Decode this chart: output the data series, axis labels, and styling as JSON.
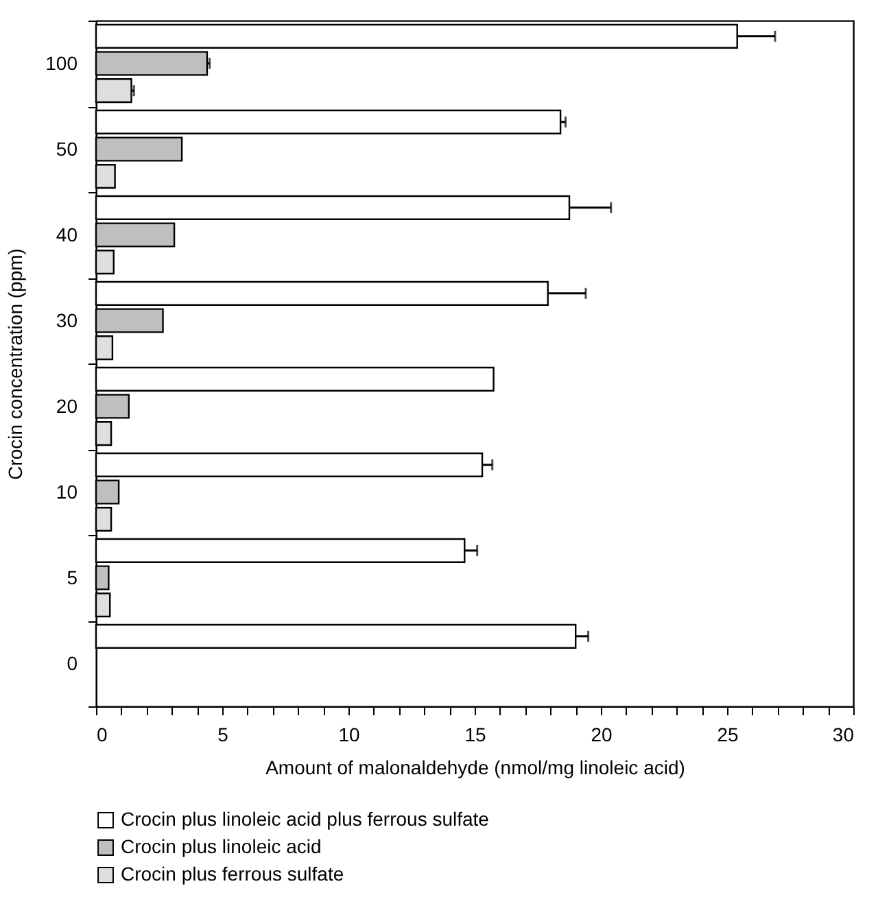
{
  "chart_data": {
    "type": "bar",
    "orientation": "horizontal",
    "xlabel": "Amount of malonaldehyde (nmol/mg linoleic acid)",
    "ylabel": "Crocin concentration (ppm)",
    "categories": [
      "100",
      "50",
      "40",
      "30",
      "20",
      "10",
      "5",
      "0"
    ],
    "xlim": [
      0,
      30
    ],
    "xticks": [
      0,
      {
        "value": 1,
        "label": null
      },
      {
        "value": 2,
        "label": null
      },
      {
        "value": 3,
        "label": null
      },
      {
        "value": 4,
        "label": null
      },
      5,
      {
        "value": 6,
        "label": null
      },
      {
        "value": 7,
        "label": null
      },
      {
        "value": 8,
        "label": null
      },
      {
        "value": 9,
        "label": null
      },
      10,
      {
        "value": 11,
        "label": null
      },
      {
        "value": 12,
        "label": null
      },
      {
        "value": 13,
        "label": null
      },
      {
        "value": 14,
        "label": null
      },
      15,
      {
        "value": 16,
        "label": null
      },
      {
        "value": 17,
        "label": null
      },
      {
        "value": 18,
        "label": null
      },
      {
        "value": 19,
        "label": null
      },
      20,
      {
        "value": 21,
        "label": null
      },
      {
        "value": 22,
        "label": null
      },
      {
        "value": 23,
        "label": null
      },
      {
        "value": 24,
        "label": null
      },
      25,
      {
        "value": 26,
        "label": null
      },
      {
        "value": 27,
        "label": null
      },
      {
        "value": 28,
        "label": null
      },
      {
        "value": 29,
        "label": null
      },
      30
    ],
    "series": [
      {
        "name": "Crocin plus linoleic acid plus ferrous sulfate",
        "color": "#ffffff",
        "values": [
          25.4,
          18.4,
          18.75,
          17.9,
          15.75,
          15.3,
          14.6,
          19.0
        ],
        "errors": [
          [
            25.4,
            26.9
          ],
          [
            18.4,
            18.6
          ],
          [
            18.75,
            20.4
          ],
          [
            17.9,
            19.4
          ],
          null,
          [
            15.3,
            15.7
          ],
          [
            14.6,
            15.1
          ],
          [
            19.0,
            19.5
          ]
        ]
      },
      {
        "name": "Crocin plus linoleic acid",
        "color": "#bfbfbf",
        "values": [
          4.4,
          3.4,
          3.1,
          2.65,
          1.3,
          0.9,
          0.5,
          null
        ],
        "errors": [
          [
            4.4,
            4.5
          ],
          null,
          null,
          null,
          null,
          null,
          null,
          null
        ]
      },
      {
        "name": "Crocin plus ferrous sulfate",
        "color": "#dedede",
        "values": [
          1.4,
          0.75,
          0.7,
          0.65,
          0.6,
          0.6,
          0.55,
          null
        ],
        "errors": [
          [
            1.4,
            1.5
          ],
          null,
          null,
          null,
          null,
          null,
          null,
          null
        ]
      }
    ],
    "legend": "bottom"
  }
}
